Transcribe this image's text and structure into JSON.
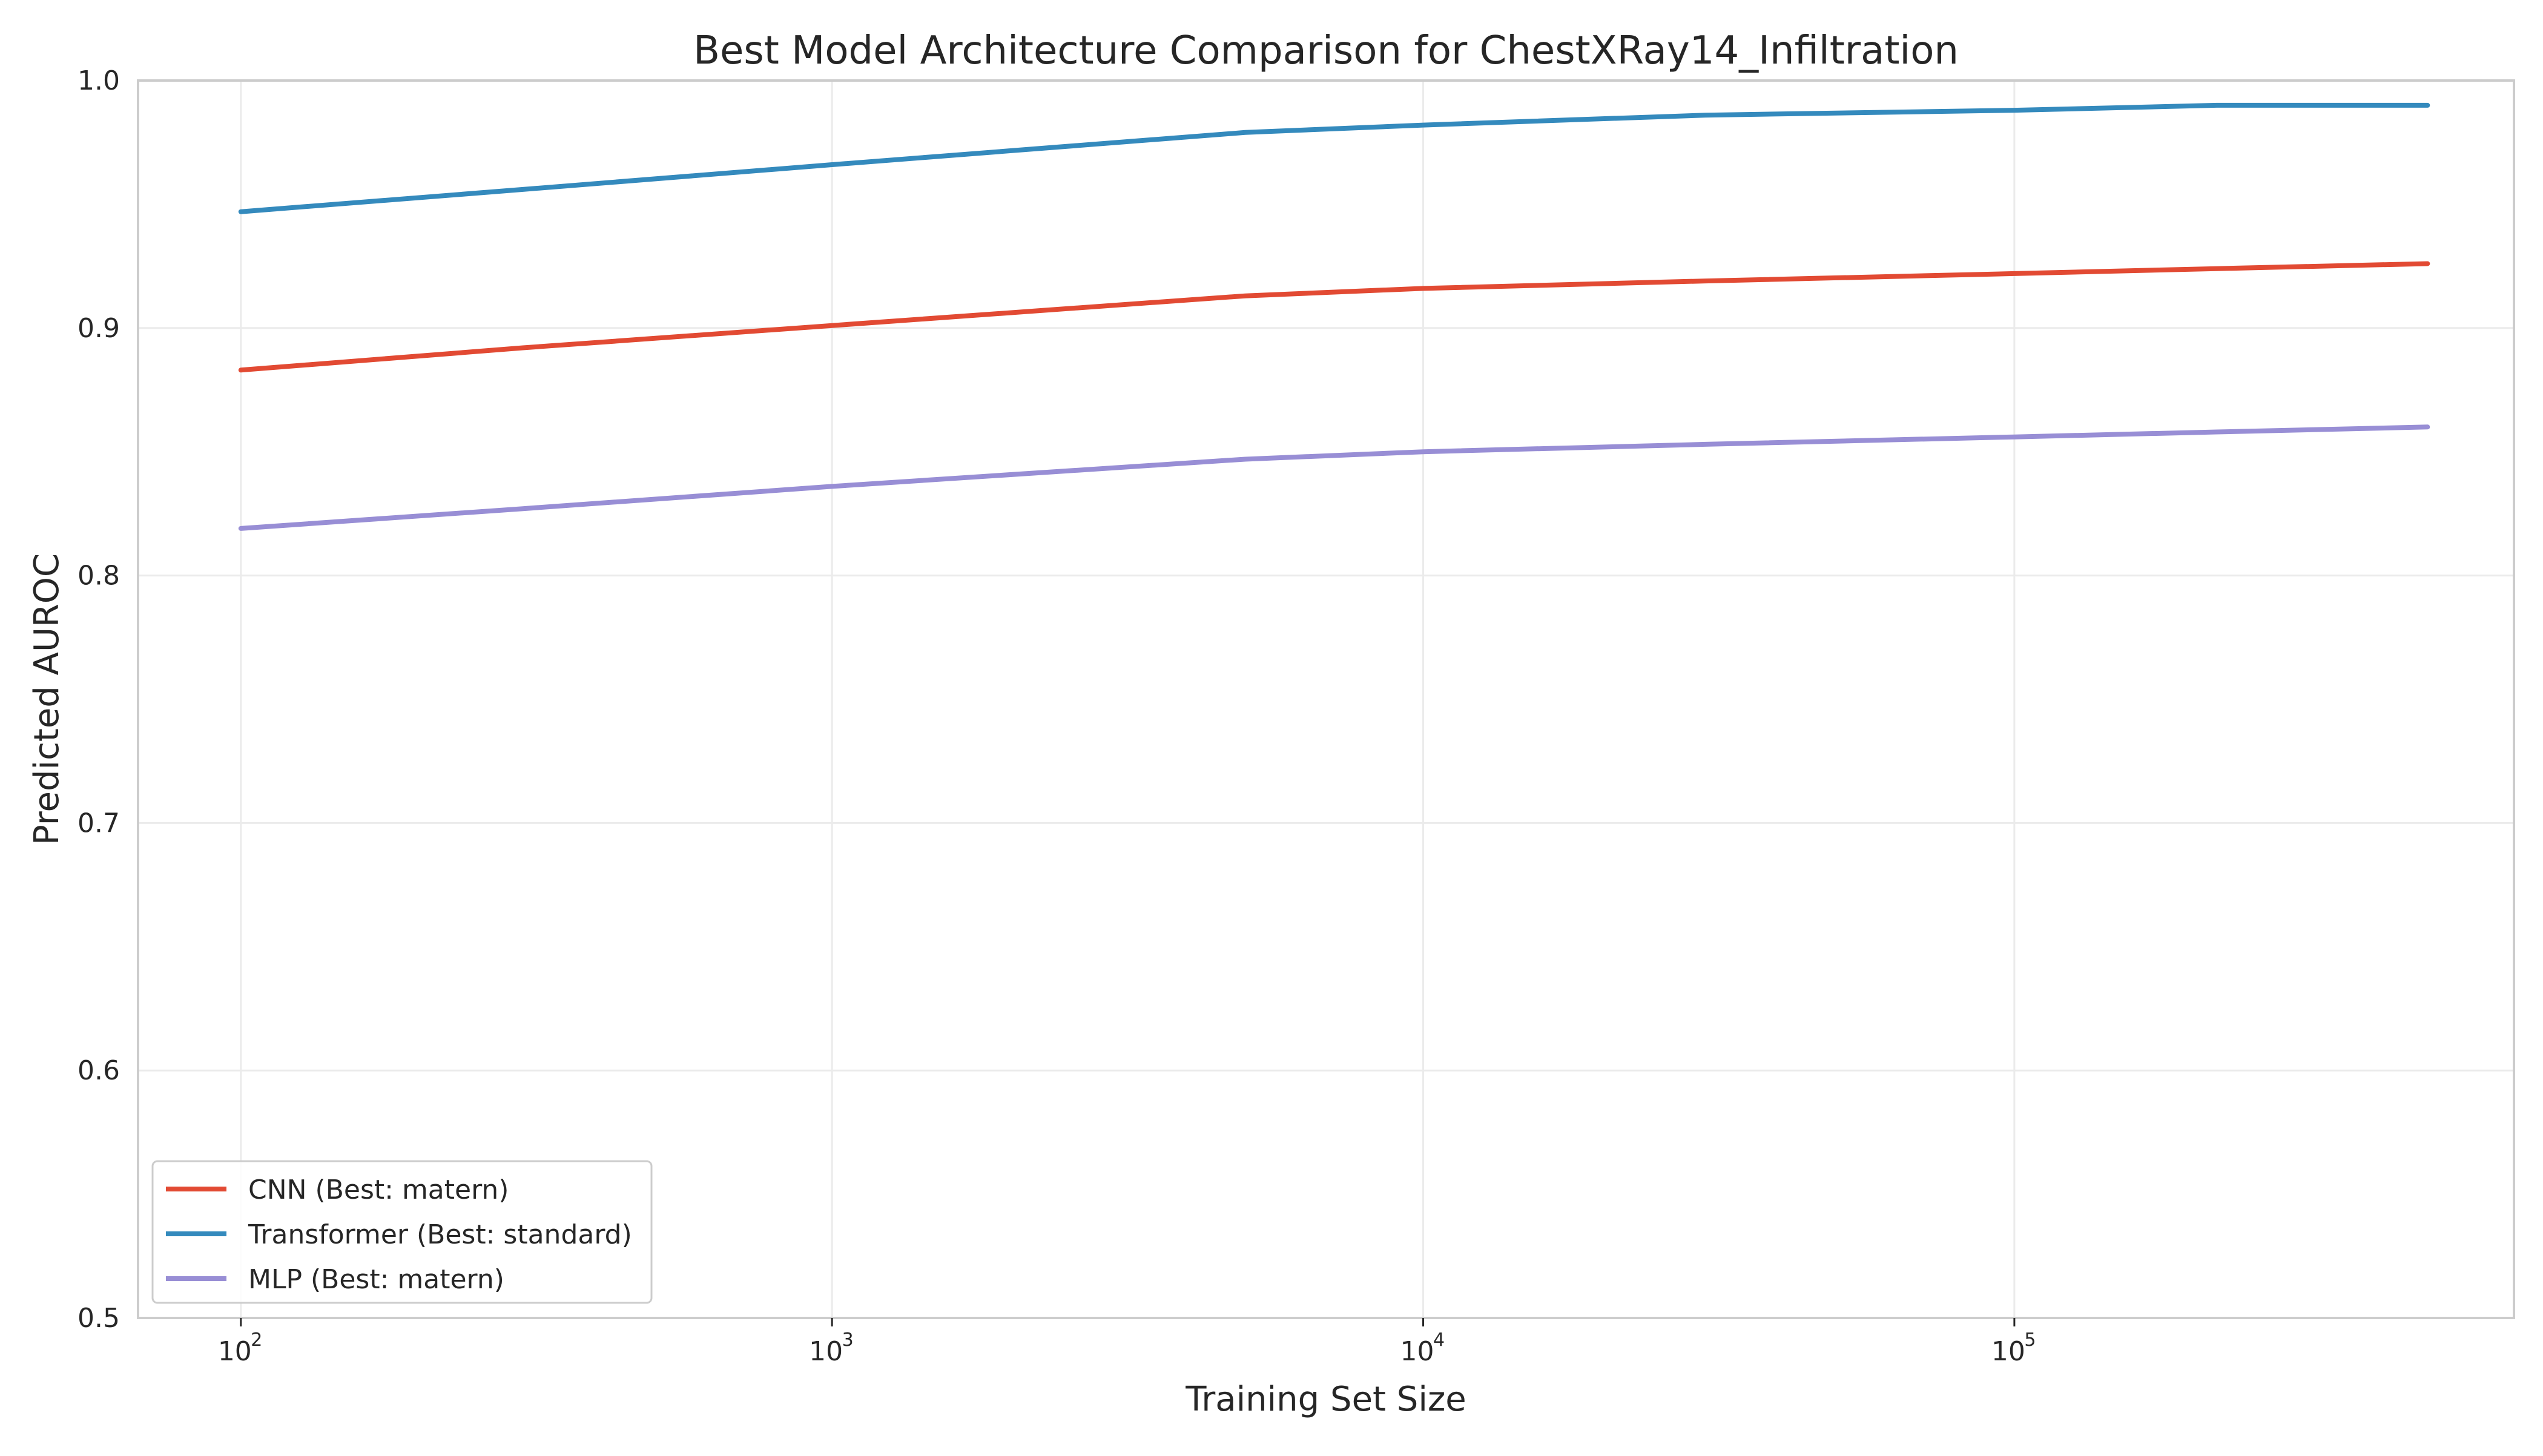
{
  "chart_data": {
    "type": "line",
    "title": "Best Model Architecture Comparison for ChestXRay14_Infiltration",
    "xlabel": "Training Set Size",
    "ylabel": "Predicted AUROC",
    "xscale": "log",
    "xlim": [
      67,
      700000
    ],
    "ylim": [
      0.5,
      1.0
    ],
    "x_ticks": [
      {
        "base": "10",
        "exp": "2",
        "value": 100
      },
      {
        "base": "10",
        "exp": "3",
        "value": 1000
      },
      {
        "base": "10",
        "exp": "4",
        "value": 10000
      },
      {
        "base": "10",
        "exp": "5",
        "value": 100000
      }
    ],
    "y_ticks": [
      "0.5",
      "0.6",
      "0.7",
      "0.8",
      "0.9",
      "1.0"
    ],
    "grid": true,
    "legend_position": "lower-left",
    "x": [
      100,
      300,
      1000,
      5000,
      10000,
      30000,
      100000,
      220000,
      500000
    ],
    "series": [
      {
        "name": "CNN (Best: matern)",
        "color": "#e24a33",
        "values": [
          0.883,
          0.892,
          0.901,
          0.913,
          0.916,
          0.919,
          0.922,
          0.924,
          0.926
        ]
      },
      {
        "name": "Transformer (Best: standard)",
        "color": "#348abd",
        "values": [
          0.947,
          0.956,
          0.966,
          0.979,
          0.982,
          0.986,
          0.988,
          0.99,
          0.99
        ]
      },
      {
        "name": "MLP (Best: matern)",
        "color": "#988ed5",
        "values": [
          0.819,
          0.827,
          0.836,
          0.847,
          0.85,
          0.853,
          0.856,
          0.858,
          0.86
        ]
      }
    ]
  }
}
